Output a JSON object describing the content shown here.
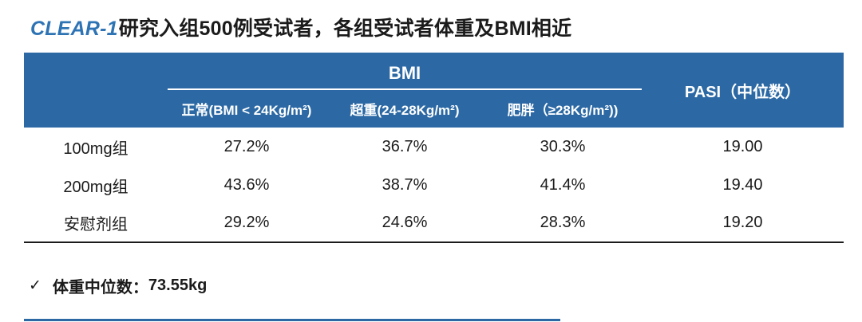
{
  "title": {
    "highlight": "CLEAR-1",
    "rest": "研究入组500例受试者，各组受试者体重及BMI相近"
  },
  "table": {
    "bmi_group_header": "BMI",
    "pasi_header": "PASI（中位数）",
    "sub_columns": [
      "正常(BMI < 24Kg/m²)",
      "超重(24-28Kg/m²)",
      "肥胖（≥28Kg/m²))"
    ],
    "rows": [
      {
        "group": "100mg组",
        "values": [
          "27.2%",
          "36.7%",
          "30.3%",
          "19.00"
        ]
      },
      {
        "group": "200mg组",
        "values": [
          "43.6%",
          "38.7%",
          "41.4%",
          "19.40"
        ]
      },
      {
        "group": "安慰剂组",
        "values": [
          "29.2%",
          "24.6%",
          "28.3%",
          "19.20"
        ]
      }
    ]
  },
  "note": {
    "check_icon": "✓",
    "label": "体重中位数：",
    "value": "73.55kg"
  },
  "colors": {
    "header_bg": "#2B68A4",
    "title_accent": "#2E74B5",
    "text": "#1B1B1B"
  }
}
